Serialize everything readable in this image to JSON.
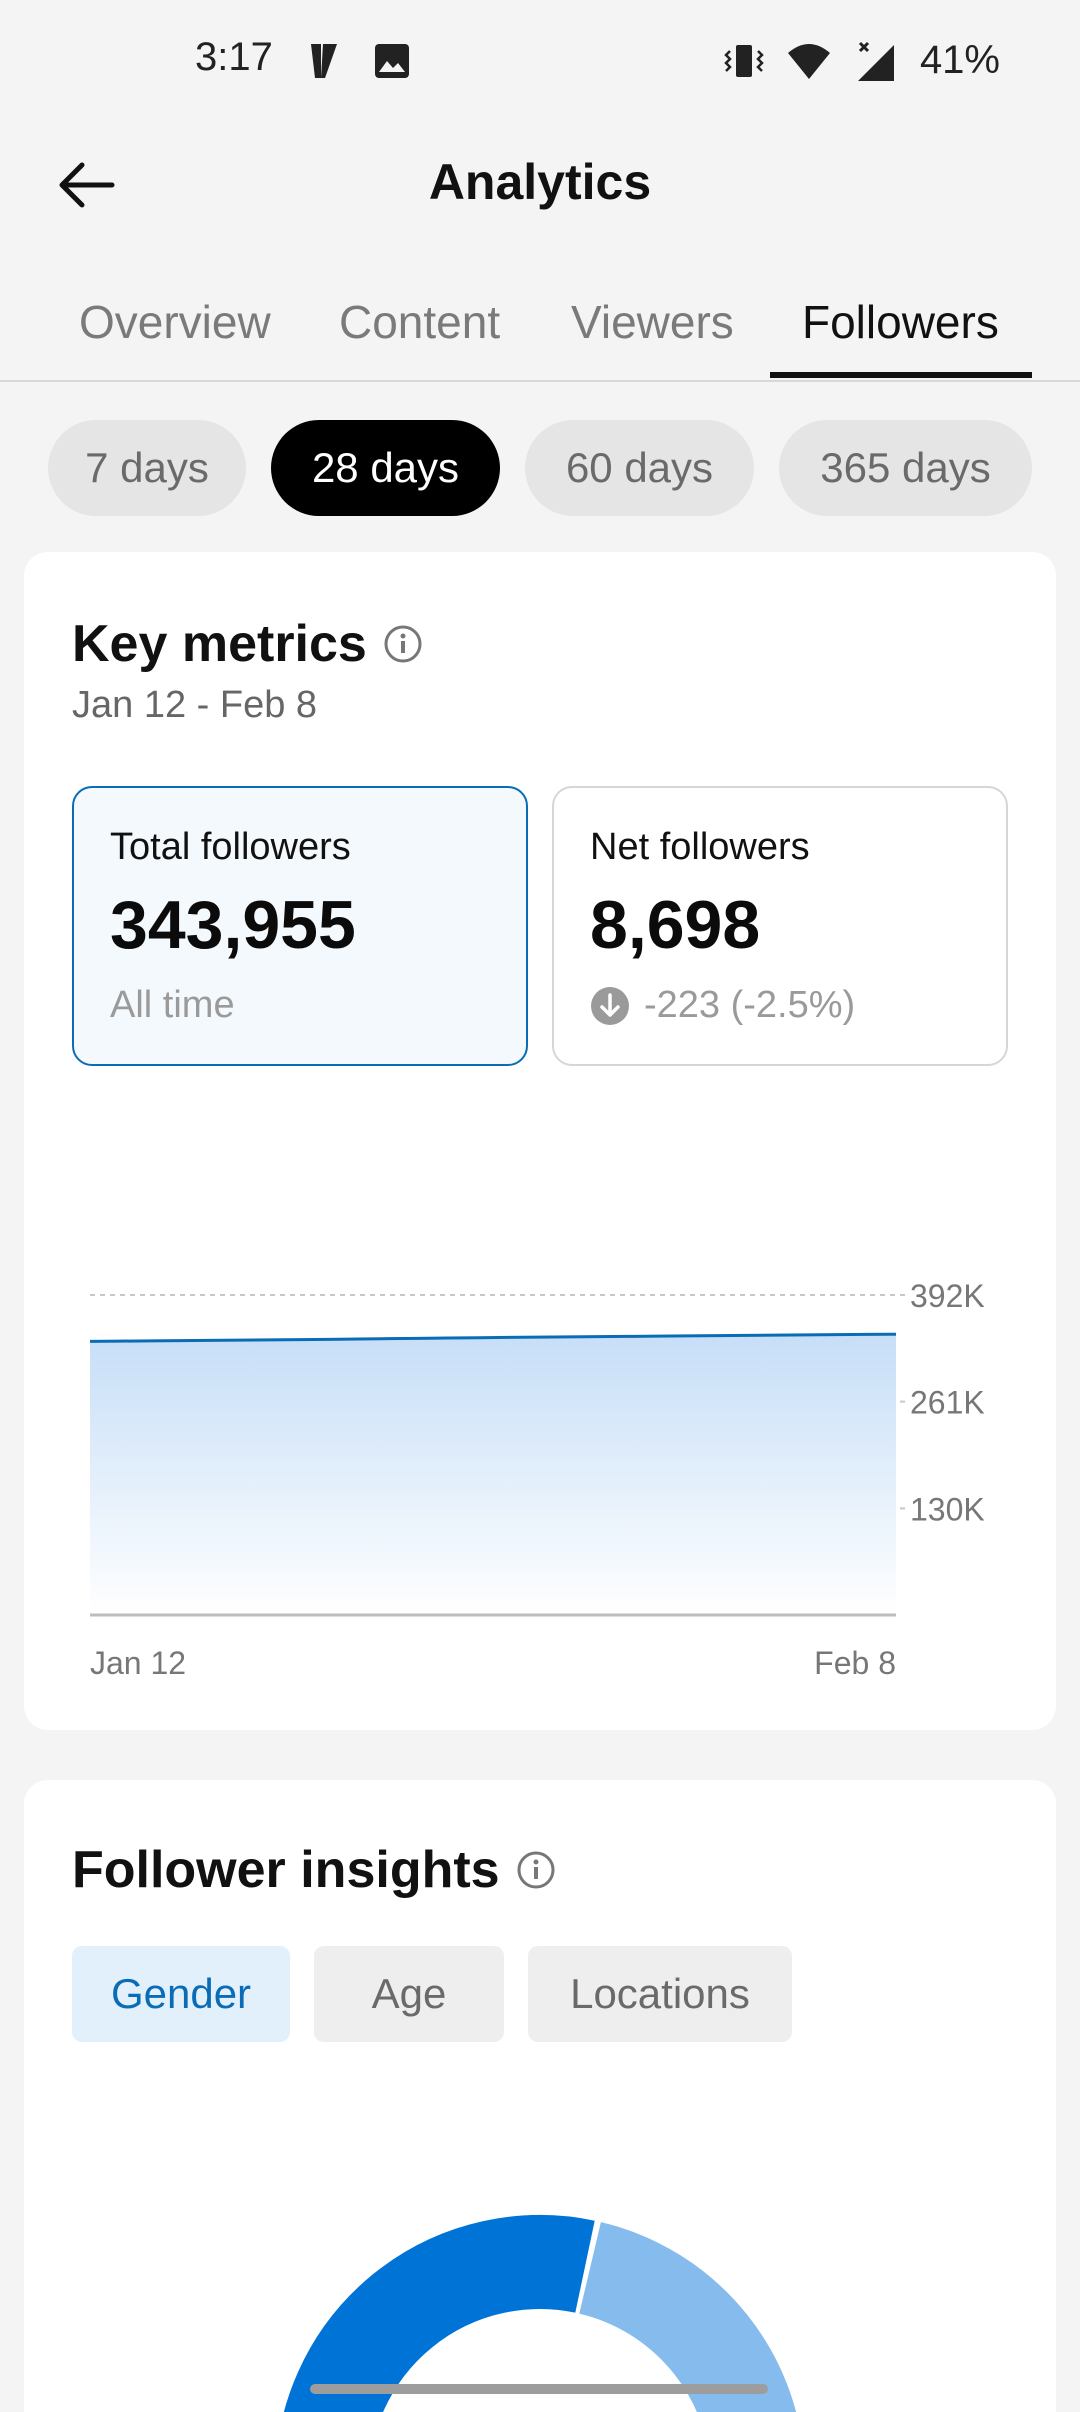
{
  "status_bar": {
    "time": "3:17",
    "battery": "41%",
    "icons": [
      "notification-y-icon",
      "gallery-icon",
      "vibrate-icon",
      "wifi-icon",
      "signal-icon"
    ]
  },
  "header": {
    "title": "Analytics",
    "back_icon": "arrow-left-icon"
  },
  "tabs": [
    {
      "label": "Overview",
      "active": false
    },
    {
      "label": "Content",
      "active": false
    },
    {
      "label": "Viewers",
      "active": false
    },
    {
      "label": "Followers",
      "active": true
    }
  ],
  "period_chips": [
    {
      "label": "7 days",
      "active": false
    },
    {
      "label": "28 days",
      "active": true
    },
    {
      "label": "60 days",
      "active": false
    },
    {
      "label": "365 days",
      "active": false
    }
  ],
  "key_metrics": {
    "title": "Key metrics",
    "date_range": "Jan 12 - Feb 8",
    "total_followers": {
      "label": "Total followers",
      "value": "343,955",
      "sub": "All time"
    },
    "net_followers": {
      "label": "Net followers",
      "value": "8,698",
      "change": "-223 (-2.5%)"
    }
  },
  "chart_data": {
    "type": "area",
    "x_labels": [
      "Jan 12",
      "Feb 8"
    ],
    "y_ticks": [
      "392K",
      "261K",
      "130K"
    ],
    "ylim": [
      0,
      392000
    ],
    "values": [
      335257,
      335500,
      335800,
      336100,
      336400,
      336700,
      337000,
      337300,
      337700,
      338100,
      338500,
      338900,
      339300,
      339700,
      340100,
      340400,
      340700,
      341000,
      341300,
      341600,
      341900,
      342200,
      342500,
      342800,
      343100,
      343400,
      343700,
      343955
    ],
    "grid": true,
    "color": "#0b6cb6"
  },
  "insights": {
    "title": "Follower insights",
    "tabs": [
      {
        "label": "Gender",
        "active": true
      },
      {
        "label": "Age",
        "active": false
      },
      {
        "label": "Locations",
        "active": false
      }
    ],
    "donut": {
      "segments": [
        {
          "value": 57,
          "color": "#0073d6"
        },
        {
          "value": 43,
          "color": "#85bced"
        }
      ]
    }
  },
  "colors": {
    "accent": "#0b6cb6",
    "background": "#f4f4f4"
  }
}
